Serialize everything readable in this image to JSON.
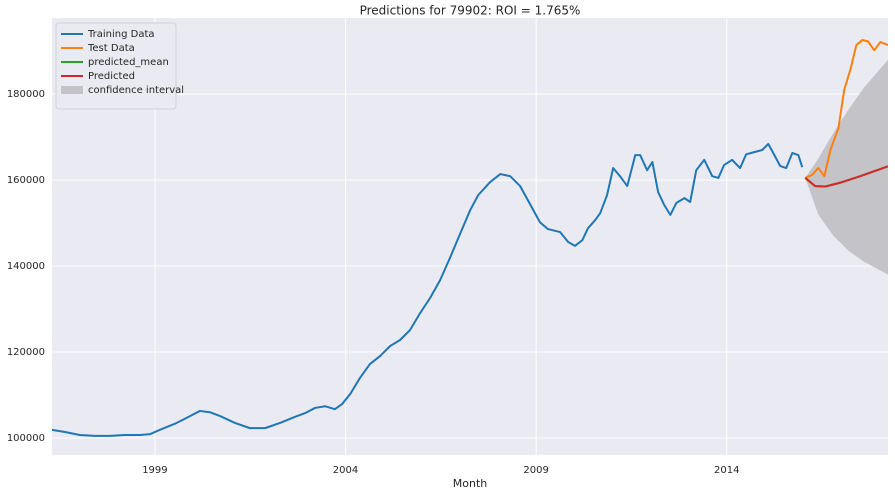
{
  "chart_data": {
    "type": "line",
    "title": "Predictions for 79902: ROI = 1.765%",
    "x_label": "Month",
    "xlim": [
      1996.3,
      2018.23
    ],
    "xticks": [
      1999,
      2004,
      2009,
      2014
    ],
    "ylim": [
      96050,
      197700
    ],
    "yticks": [
      100000,
      120000,
      140000,
      160000,
      180000
    ],
    "grid": true,
    "legend": "upper-left",
    "series": [
      {
        "name": "Training Data",
        "color": "#1f77b4",
        "x": [
          1996.3,
          1996.64,
          1997.03,
          1997.43,
          1997.82,
          1998.21,
          1998.61,
          1998.87,
          1999.13,
          1999.52,
          1999.92,
          2000.18,
          2000.44,
          2000.71,
          2001.1,
          2001.49,
          2001.89,
          2002.28,
          2002.67,
          2002.94,
          2003.2,
          2003.46,
          2003.72,
          2003.91,
          2004.12,
          2004.38,
          2004.64,
          2004.91,
          2005.17,
          2005.43,
          2005.69,
          2005.96,
          2006.22,
          2006.48,
          2006.74,
          2007.0,
          2007.27,
          2007.48,
          2007.79,
          2008.06,
          2008.32,
          2008.58,
          2008.84,
          2009.1,
          2009.31,
          2009.63,
          2009.84,
          2010.02,
          2010.21,
          2010.36,
          2010.55,
          2010.68,
          2010.86,
          2011.02,
          2011.2,
          2011.39,
          2011.6,
          2011.73,
          2011.91,
          2012.05,
          2012.2,
          2012.36,
          2012.52,
          2012.68,
          2012.89,
          2013.04,
          2013.2,
          2013.41,
          2013.62,
          2013.78,
          2013.93,
          2014.14,
          2014.35,
          2014.51,
          2014.72,
          2014.93,
          2015.09,
          2015.25,
          2015.4,
          2015.56,
          2015.72,
          2015.88,
          2015.98
        ],
        "values": [
          101900,
          101400,
          100700,
          100500,
          100500,
          100700,
          100700,
          100900,
          101900,
          103300,
          105100,
          106300,
          106000,
          105100,
          103500,
          102300,
          102300,
          103500,
          104900,
          105800,
          107000,
          107400,
          106700,
          107900,
          110200,
          114000,
          117200,
          119100,
          121400,
          122800,
          125100,
          129100,
          132600,
          136700,
          141900,
          147400,
          153000,
          156500,
          159500,
          161400,
          160900,
          158600,
          154400,
          150200,
          148600,
          147900,
          145600,
          144700,
          146000,
          148800,
          150700,
          152300,
          156500,
          162800,
          160900,
          158600,
          165800,
          165800,
          162300,
          164200,
          157200,
          154200,
          151900,
          154700,
          155800,
          154900,
          162300,
          164700,
          160900,
          160500,
          163500,
          164700,
          162800,
          166000,
          166500,
          167000,
          168400,
          165800,
          163300,
          162800,
          166300,
          165800,
          163000
        ]
      },
      {
        "name": "Test Data",
        "color": "#ff7f0e",
        "x": [
          2016.06,
          2016.24,
          2016.4,
          2016.56,
          2016.72,
          2016.93,
          2017.08,
          2017.24,
          2017.4,
          2017.56,
          2017.71,
          2017.87,
          2018.03,
          2018.23
        ],
        "values": [
          160500,
          161200,
          162800,
          160900,
          167000,
          172100,
          180900,
          185600,
          191400,
          192600,
          192200,
          190200,
          192100,
          191400
        ]
      },
      {
        "name": "predicted_mean",
        "color": "#2ca02c",
        "x": [
          2016.06,
          2016.32,
          2016.59,
          2016.98,
          2017.5,
          2018.23
        ],
        "values": [
          160500,
          158600,
          158500,
          159400,
          160900,
          163200
        ]
      },
      {
        "name": "Predicted",
        "color": "#d62728",
        "x": [
          2016.06,
          2016.32,
          2016.59,
          2016.98,
          2017.5,
          2018.23
        ],
        "values": [
          160500,
          158600,
          158500,
          159400,
          160900,
          163200
        ]
      },
      {
        "name": "confidence interval",
        "color": "#c4c4c8",
        "kind": "band",
        "x": [
          2016.06,
          2016.4,
          2016.8,
          2017.2,
          2017.6,
          2018.23
        ],
        "lower": [
          160500,
          152000,
          147000,
          143500,
          141000,
          138000
        ],
        "upper": [
          160500,
          165000,
          171000,
          176500,
          181500,
          188000
        ]
      }
    ]
  }
}
